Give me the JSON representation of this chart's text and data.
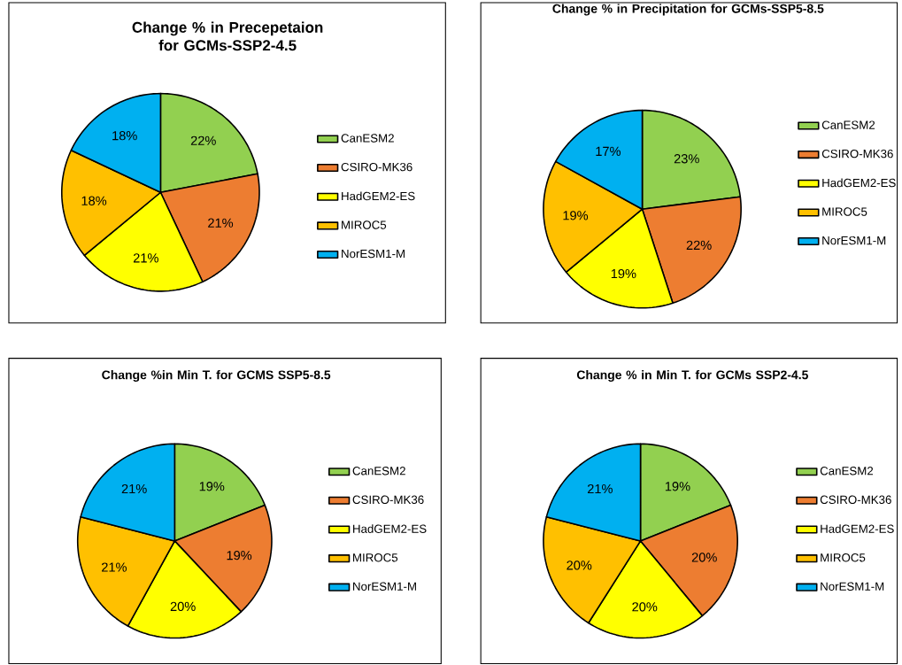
{
  "chart_data": [
    {
      "type": "pie",
      "title": "Change % in Precepetaion for GCMs-SSP2-4.5",
      "categories": [
        "CanESM2",
        "CSIRO-MK36",
        "HadGEM2-ES",
        "MIROC5",
        "NorESM1-M"
      ],
      "values": [
        22,
        21,
        21,
        18,
        18
      ],
      "value_labels": [
        "22%",
        "21%",
        "21%",
        "18%",
        "18%"
      ],
      "colors": [
        "#92d050",
        "#ed7d31",
        "#ffff00",
        "#ffc000",
        "#00b0f0"
      ],
      "legend": "right"
    },
    {
      "type": "pie",
      "title": "Change % in Precipitation for GCMs-SSP5-8.5",
      "categories": [
        "CanESM2",
        "CSIRO-MK36",
        "HadGEM2-ES",
        "MIROC5",
        "NorESM1-M"
      ],
      "values": [
        23,
        22,
        19,
        19,
        17
      ],
      "value_labels": [
        "23%",
        "22%",
        "19%",
        "19%",
        "17%"
      ],
      "colors": [
        "#92d050",
        "#ed7d31",
        "#ffff00",
        "#ffc000",
        "#00b0f0"
      ],
      "legend": "right"
    },
    {
      "type": "pie",
      "title": "Change %in Min T. for GCMS SSP5-8.5",
      "categories": [
        "CanESM2",
        "CSIRO-MK36",
        "HadGEM2-ES",
        "MIROC5",
        "NorESM1-M"
      ],
      "values": [
        19,
        19,
        20,
        21,
        21
      ],
      "value_labels": [
        "19%",
        "19%",
        "20%",
        "21%",
        "21%"
      ],
      "colors": [
        "#92d050",
        "#ed7d31",
        "#ffff00",
        "#ffc000",
        "#00b0f0"
      ],
      "legend": "right"
    },
    {
      "type": "pie",
      "title": "Change % in Min T. for GCMs SSP2-4.5",
      "categories": [
        "CanESM2",
        "CSIRO-MK36",
        "HadGEM2-ES",
        "MIROC5",
        "NorESM1-M"
      ],
      "values": [
        19,
        20,
        20,
        20,
        21
      ],
      "value_labels": [
        "19%",
        "20%",
        "20%",
        "20%",
        "21%"
      ],
      "colors": [
        "#92d050",
        "#ed7d31",
        "#ffff00",
        "#ffc000",
        "#00b0f0"
      ],
      "legend": "right"
    }
  ]
}
